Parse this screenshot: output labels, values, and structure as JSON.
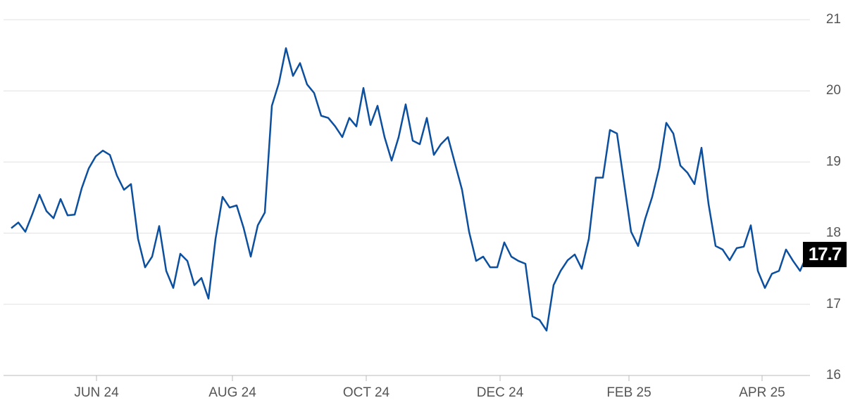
{
  "chart_data": {
    "type": "line",
    "series": [
      {
        "color": "#0b4f9e",
        "values": [
          18.07,
          18.15,
          18.02,
          18.27,
          18.54,
          18.31,
          18.21,
          18.48,
          18.25,
          18.26,
          18.63,
          18.91,
          19.08,
          19.16,
          19.1,
          18.81,
          18.61,
          18.69,
          17.92,
          17.52,
          17.67,
          18.1,
          17.47,
          17.23,
          17.71,
          17.61,
          17.27,
          17.37,
          17.08,
          17.92,
          18.51,
          18.36,
          18.39,
          18.07,
          17.67,
          18.11,
          18.29,
          19.79,
          20.11,
          20.6,
          20.21,
          20.39,
          20.09,
          19.97,
          19.65,
          19.62,
          19.5,
          19.35,
          19.62,
          19.5,
          20.04,
          19.52,
          19.79,
          19.35,
          19.02,
          19.35,
          19.81,
          19.3,
          19.25,
          19.62,
          19.1,
          19.25,
          19.35,
          18.98,
          18.61,
          18.02,
          17.61,
          17.67,
          17.52,
          17.52,
          17.87,
          17.67,
          17.61,
          17.57,
          16.83,
          16.78,
          16.63,
          17.27,
          17.47,
          17.62,
          17.7,
          17.5,
          17.92,
          18.78,
          18.78,
          19.45,
          19.4,
          18.71,
          18.02,
          17.82,
          18.2,
          18.51,
          18.92,
          19.55,
          19.4,
          18.95,
          18.85,
          18.69,
          19.2,
          18.41,
          17.82,
          17.77,
          17.62,
          17.79,
          17.81,
          18.11,
          17.47,
          17.23,
          17.43,
          17.47,
          17.77,
          17.61,
          17.47,
          17.7
        ]
      }
    ],
    "current": 17.7,
    "xlim": [
      -1.1,
      113.4
    ],
    "xticks": [
      {
        "value": 12.1,
        "label": "JUN 24"
      },
      {
        "value": 31.4,
        "label": "AUG 24"
      },
      {
        "value": 50.4,
        "label": "OCT 24"
      },
      {
        "value": 69.4,
        "label": "DEC 24"
      },
      {
        "value": 87.7,
        "label": "FEB 25"
      },
      {
        "value": 106.6,
        "label": "APR 25"
      }
    ],
    "ylim": [
      16,
      21
    ],
    "yticks": [
      16,
      17,
      18,
      19,
      20,
      21
    ],
    "grid": true
  }
}
